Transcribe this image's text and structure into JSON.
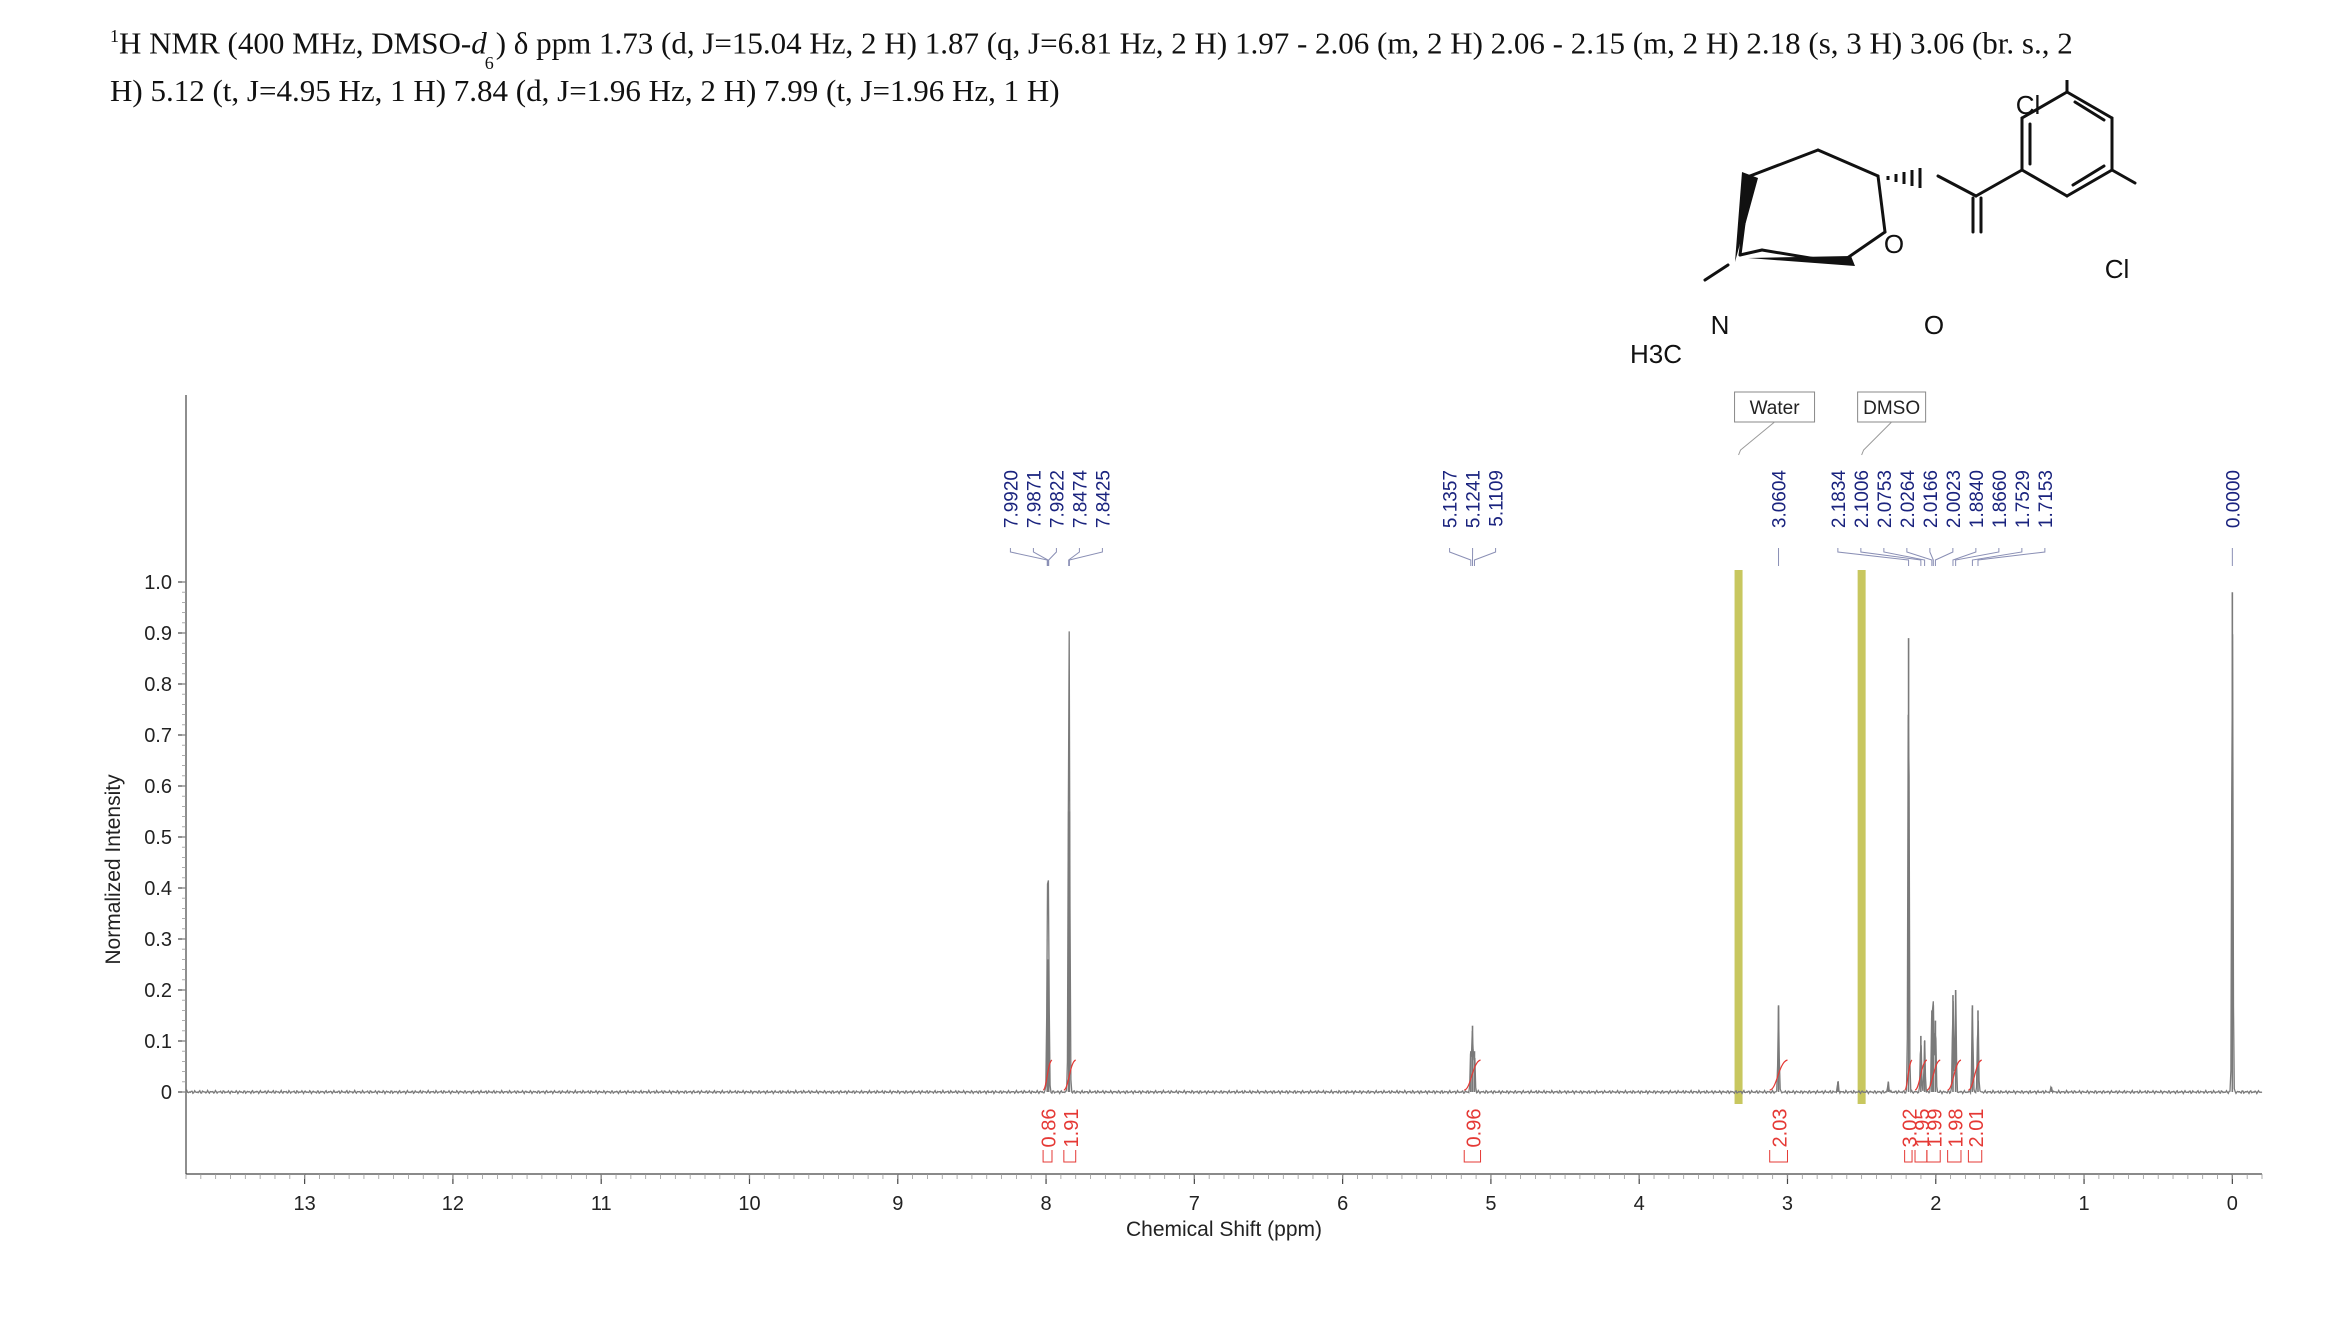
{
  "title": {
    "nucleus_sup": "1",
    "prefix": "H NMR (400 MHz, DMSO-",
    "solvent_italic": "d",
    "solvent_sub": "6",
    "rest_line1": ") δ ppm 1.73 (d, J=15.04 Hz, 2 H) 1.87 (q, J=6.81 Hz, 2 H) 1.97 - 2.06 (m, 2 H) 2.06 - 2.15 (m, 2 H) 2.18 (s, 3 H) 3.06 (br. s., 2",
    "rest_line2": "H) 5.12 (t, J=4.95 Hz, 1 H) 7.84 (d, J=1.96 Hz, 2 H) 7.99 (t, J=1.96 Hz, 1 H)"
  },
  "structure": {
    "atom_labels": [
      "Cl",
      "Cl",
      "O",
      "O",
      "N",
      "H3C"
    ]
  },
  "colors": {
    "spectrum": "#7a7a7a",
    "peak_label": "#1a237e",
    "integral": "#e53935",
    "solvent_band": "#b5b42a",
    "axis": "#444444"
  },
  "chart_data": {
    "type": "line",
    "xlabel": "Chemical Shift (ppm)",
    "ylabel": "Normalized Intensity",
    "xlim": [
      13.8,
      -0.2
    ],
    "ylim": [
      0,
      1.0
    ],
    "x_ticks": [
      13,
      12,
      11,
      10,
      9,
      8,
      7,
      6,
      5,
      4,
      3,
      2,
      1,
      0
    ],
    "y_ticks": [
      "1.0",
      "0.9",
      "0.8",
      "0.7",
      "0.6",
      "0.5",
      "0.4",
      "0.3",
      "0.2",
      "0.1",
      "0"
    ],
    "y_tick_values": [
      1.0,
      0.9,
      0.8,
      0.7,
      0.6,
      0.5,
      0.4,
      0.3,
      0.2,
      0.1,
      0
    ],
    "peaks": [
      {
        "ppm": 7.992,
        "height": 0.2
      },
      {
        "ppm": 7.9871,
        "height": 0.26
      },
      {
        "ppm": 7.9822,
        "height": 0.21
      },
      {
        "ppm": 7.8474,
        "height": 0.55
      },
      {
        "ppm": 7.8425,
        "height": 0.55
      },
      {
        "ppm": 5.1357,
        "height": 0.08
      },
      {
        "ppm": 5.1241,
        "height": 0.13
      },
      {
        "ppm": 5.1109,
        "height": 0.08
      },
      {
        "ppm": 3.0604,
        "height": 0.17
      },
      {
        "ppm": 2.66,
        "height": 0.02
      },
      {
        "ppm": 2.32,
        "height": 0.02
      },
      {
        "ppm": 2.1834,
        "height": 0.89
      },
      {
        "ppm": 2.1006,
        "height": 0.11
      },
      {
        "ppm": 2.0753,
        "height": 0.1
      },
      {
        "ppm": 2.0264,
        "height": 0.16
      },
      {
        "ppm": 2.0166,
        "height": 0.17
      },
      {
        "ppm": 2.0023,
        "height": 0.14
      },
      {
        "ppm": 1.884,
        "height": 0.19
      },
      {
        "ppm": 1.866,
        "height": 0.2
      },
      {
        "ppm": 1.7529,
        "height": 0.17
      },
      {
        "ppm": 1.7153,
        "height": 0.16
      },
      {
        "ppm": 1.22,
        "height": 0.01
      },
      {
        "ppm": 0.0,
        "height": 0.98
      }
    ],
    "peak_labels": [
      {
        "group": [
          7.992,
          7.9871,
          7.9822,
          7.8474,
          7.8425
        ],
        "labels": [
          "7.9920",
          "7.9871",
          "7.9822",
          "7.8474",
          "7.8425"
        ]
      },
      {
        "group": [
          5.1357,
          5.1241,
          5.1109
        ],
        "labels": [
          "5.1357",
          "5.1241",
          "5.1109"
        ]
      },
      {
        "group": [
          3.0604
        ],
        "labels": [
          "3.0604"
        ]
      },
      {
        "group": [
          2.1834,
          2.1006,
          2.0753,
          2.0264,
          2.0166,
          2.0023,
          1.884,
          1.866,
          1.7529,
          1.7153
        ],
        "labels": [
          "2.1834",
          "2.1006",
          "2.0753",
          "2.0264",
          "2.0166",
          "2.0023",
          "1.8840",
          "1.8660",
          "1.7529",
          "1.7153"
        ]
      },
      {
        "group": [
          0.0
        ],
        "labels": [
          "0.0000"
        ]
      }
    ],
    "integrals": [
      {
        "from": 8.02,
        "to": 7.96,
        "label": "0.86"
      },
      {
        "from": 7.88,
        "to": 7.8,
        "label": "1.91"
      },
      {
        "from": 5.18,
        "to": 5.07,
        "label": "0.96"
      },
      {
        "from": 3.12,
        "to": 3.0,
        "label": "2.03"
      },
      {
        "from": 2.21,
        "to": 2.16,
        "label": "3.02"
      },
      {
        "from": 2.14,
        "to": 2.06,
        "label": "1.95"
      },
      {
        "from": 2.06,
        "to": 1.97,
        "label": "1.99"
      },
      {
        "from": 1.92,
        "to": 1.83,
        "label": "1.98"
      },
      {
        "from": 1.78,
        "to": 1.69,
        "label": "2.01"
      }
    ],
    "solvent_regions": [
      {
        "ppm": 3.33,
        "label": "Water"
      },
      {
        "ppm": 2.5,
        "label": "DMSO"
      }
    ]
  }
}
